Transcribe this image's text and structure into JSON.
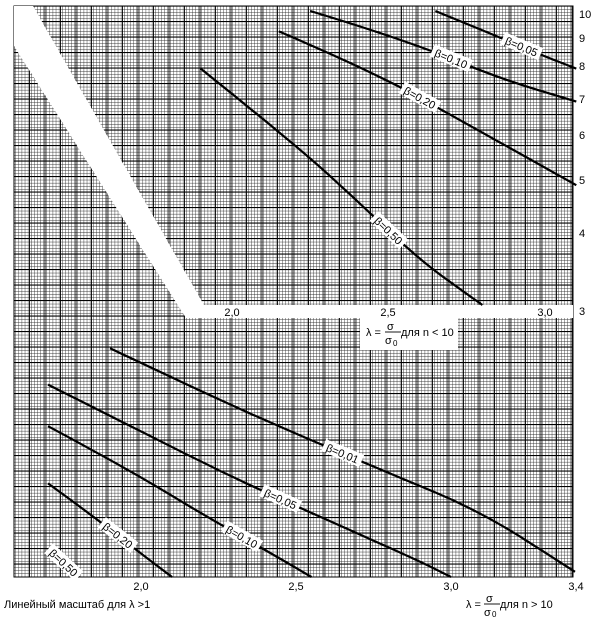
{
  "chart_data": {
    "type": "line",
    "title": "",
    "lower_plot": {
      "x_range": [
        1.7,
        3.4
      ],
      "x_ticks": [
        "2,0",
        "2,5",
        "3,0",
        "3,4"
      ],
      "x_caption_prefix": "λ =",
      "x_caption_num": "σ",
      "x_caption_den": "σ",
      "x_caption_den_sub": "0",
      "x_caption_suffix": " для n > 10",
      "left_caption": "Линейный масштаб для λ >1",
      "curves": [
        {
          "label": "β=0,01",
          "points": [
            [
              1.9,
              0.88
            ],
            [
              2.2,
              0.71
            ],
            [
              2.5,
              0.55
            ],
            [
              2.8,
              0.4
            ],
            [
              3.1,
              0.25
            ],
            [
              3.4,
              0.02
            ]
          ]
        },
        {
          "label": "β=0,05",
          "points": [
            [
              1.7,
              0.74
            ],
            [
              2.0,
              0.56
            ],
            [
              2.3,
              0.38
            ],
            [
              2.6,
              0.22
            ],
            [
              2.9,
              0.06
            ],
            [
              3.0,
              0.0
            ]
          ]
        },
        {
          "label": "β=0,10",
          "points": [
            [
              1.7,
              0.58
            ],
            [
              1.95,
              0.42
            ],
            [
              2.2,
              0.24
            ],
            [
              2.45,
              0.07
            ],
            [
              2.55,
              0.0
            ]
          ]
        },
        {
          "label": "β=0,20",
          "points": [
            [
              1.7,
              0.36
            ],
            [
              1.85,
              0.23
            ],
            [
              2.0,
              0.09
            ],
            [
              2.1,
              0.0
            ]
          ]
        },
        {
          "label": "β=0,50",
          "points": [
            [
              1.7,
              0.11
            ],
            [
              1.8,
              0.0
            ]
          ]
        }
      ]
    },
    "upper_plot": {
      "x_range": [
        1.7,
        3.1
      ],
      "x_ticks": [
        "2,0",
        "2,5",
        "3,0"
      ],
      "x_caption_prefix": "λ =",
      "x_caption_num": "σ",
      "x_caption_den": "σ",
      "x_caption_den_sub": "0",
      "x_caption_suffix": " для n < 10",
      "y_ticks": [
        "10",
        "9",
        "8",
        "7",
        "6",
        "5",
        "4",
        "3"
      ],
      "curves": [
        {
          "label": "β=0,05",
          "points": [
            [
              2.65,
              10.0
            ],
            [
              2.85,
              9.0
            ],
            [
              3.0,
              8.3
            ],
            [
              3.1,
              7.9
            ]
          ]
        },
        {
          "label": "β=0,10",
          "points": [
            [
              2.25,
              10.0
            ],
            [
              2.55,
              8.9
            ],
            [
              2.85,
              7.6
            ],
            [
              3.1,
              6.9
            ]
          ]
        },
        {
          "label": "β=0,20",
          "points": [
            [
              2.15,
              9.2
            ],
            [
              2.45,
              7.8
            ],
            [
              2.75,
              6.3
            ],
            [
              3.1,
              4.9
            ]
          ]
        },
        {
          "label": "β=0,50",
          "points": [
            [
              1.9,
              7.9
            ],
            [
              2.2,
              5.8
            ],
            [
              2.4,
              4.6
            ],
            [
              2.6,
              3.6
            ],
            [
              2.8,
              3.0
            ]
          ]
        }
      ]
    }
  }
}
